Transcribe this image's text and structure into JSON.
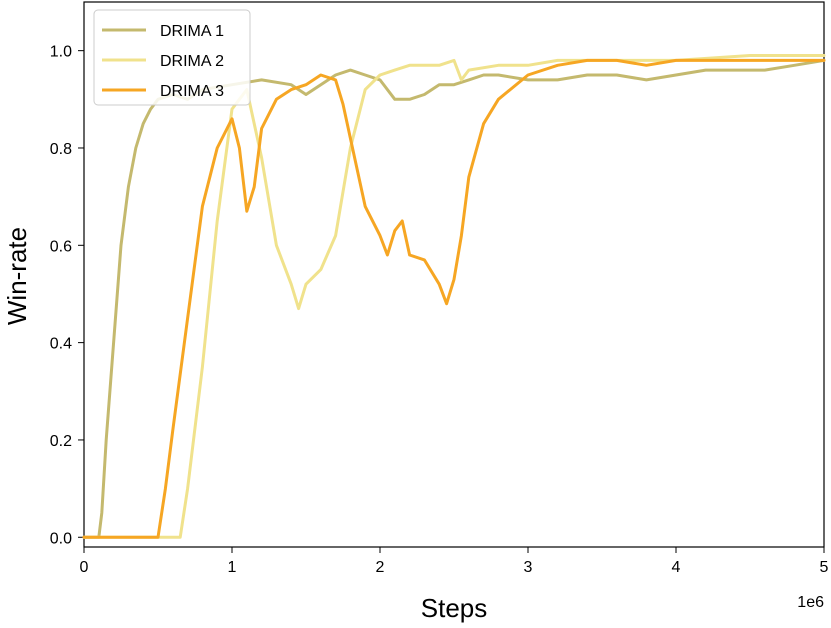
{
  "chart_data": {
    "type": "line",
    "xlabel": "Steps",
    "ylabel": "Win-rate",
    "x_offset_label": "1e6",
    "xlim": [
      0,
      5
    ],
    "ylim": [
      -0.02,
      1.1
    ],
    "xticks": [
      0,
      1,
      2,
      3,
      4,
      5
    ],
    "yticks": [
      0.0,
      0.2,
      0.4,
      0.6,
      0.8,
      1.0
    ],
    "xtick_labels": [
      "0",
      "1",
      "2",
      "3",
      "4",
      "5"
    ],
    "ytick_labels": [
      "0.0",
      "0.2",
      "0.4",
      "0.6",
      "0.8",
      "1.0"
    ],
    "grid": false,
    "legend_position": "top-left",
    "series": [
      {
        "name": "DRIMA 1",
        "color": "#c4b96e",
        "x": [
          0,
          0.1,
          0.12,
          0.15,
          0.2,
          0.25,
          0.3,
          0.35,
          0.4,
          0.45,
          0.5,
          0.6,
          0.7,
          0.8,
          1.0,
          1.2,
          1.4,
          1.5,
          1.6,
          1.7,
          1.8,
          1.9,
          2.0,
          2.1,
          2.2,
          2.3,
          2.4,
          2.5,
          2.6,
          2.7,
          2.8,
          3.0,
          3.2,
          3.4,
          3.6,
          3.8,
          4.0,
          4.2,
          4.4,
          4.6,
          4.8,
          5.0
        ],
        "y": [
          0.0,
          0.0,
          0.05,
          0.2,
          0.4,
          0.6,
          0.72,
          0.8,
          0.85,
          0.88,
          0.9,
          0.91,
          0.9,
          0.92,
          0.93,
          0.94,
          0.93,
          0.91,
          0.93,
          0.95,
          0.96,
          0.95,
          0.94,
          0.9,
          0.9,
          0.91,
          0.93,
          0.93,
          0.94,
          0.95,
          0.95,
          0.94,
          0.94,
          0.95,
          0.95,
          0.94,
          0.95,
          0.96,
          0.96,
          0.96,
          0.97,
          0.98
        ]
      },
      {
        "name": "DRIMA 2",
        "color": "#f0e28c",
        "x": [
          0,
          0.65,
          0.7,
          0.8,
          0.9,
          1.0,
          1.05,
          1.1,
          1.2,
          1.3,
          1.4,
          1.45,
          1.5,
          1.6,
          1.7,
          1.8,
          1.9,
          2.0,
          2.1,
          2.2,
          2.3,
          2.4,
          2.5,
          2.55,
          2.6,
          2.8,
          3.0,
          3.2,
          3.5,
          4.0,
          4.5,
          5.0
        ],
        "y": [
          0.0,
          0.0,
          0.1,
          0.35,
          0.65,
          0.88,
          0.9,
          0.92,
          0.78,
          0.6,
          0.52,
          0.47,
          0.52,
          0.55,
          0.62,
          0.8,
          0.92,
          0.95,
          0.96,
          0.97,
          0.97,
          0.97,
          0.98,
          0.94,
          0.96,
          0.97,
          0.97,
          0.98,
          0.98,
          0.98,
          0.99,
          0.99
        ]
      },
      {
        "name": "DRIMA 3",
        "color": "#f6a623",
        "x": [
          0,
          0.5,
          0.55,
          0.6,
          0.7,
          0.8,
          0.9,
          1.0,
          1.05,
          1.1,
          1.15,
          1.2,
          1.3,
          1.4,
          1.5,
          1.6,
          1.7,
          1.75,
          1.8,
          1.9,
          2.0,
          2.05,
          2.1,
          2.15,
          2.2,
          2.3,
          2.4,
          2.45,
          2.5,
          2.55,
          2.6,
          2.7,
          2.8,
          3.0,
          3.2,
          3.4,
          3.6,
          3.8,
          4.0,
          4.2,
          4.4,
          4.6,
          4.8,
          5.0
        ],
        "y": [
          0.0,
          0.0,
          0.1,
          0.22,
          0.45,
          0.68,
          0.8,
          0.86,
          0.8,
          0.67,
          0.72,
          0.84,
          0.9,
          0.92,
          0.93,
          0.95,
          0.94,
          0.89,
          0.82,
          0.68,
          0.62,
          0.58,
          0.63,
          0.65,
          0.58,
          0.57,
          0.52,
          0.48,
          0.53,
          0.62,
          0.74,
          0.85,
          0.9,
          0.95,
          0.97,
          0.98,
          0.98,
          0.97,
          0.98,
          0.98,
          0.98,
          0.98,
          0.98,
          0.98
        ]
      }
    ]
  }
}
